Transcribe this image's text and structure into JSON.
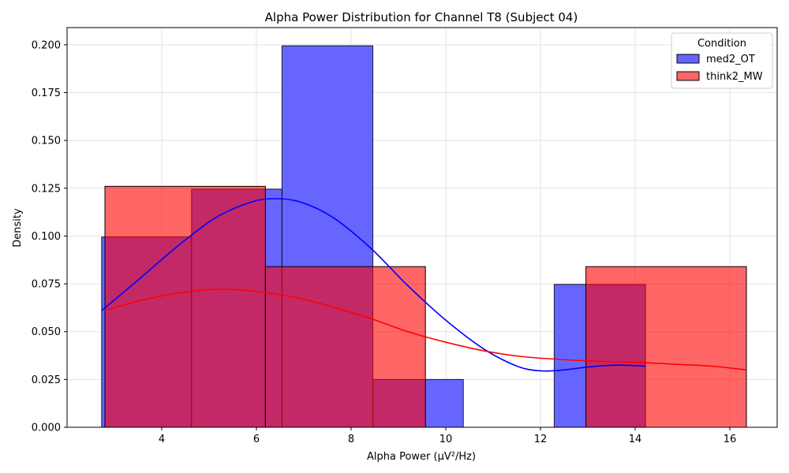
{
  "chart_data": {
    "type": "histogram",
    "title": "Alpha Power Distribution for Channel T8 (Subject 04)",
    "xlabel": "Alpha Power (µV²/Hz)",
    "ylabel": "Density",
    "xlim": [
      2.0,
      17.0
    ],
    "ylim": [
      0.0,
      0.209
    ],
    "x_ticks": [
      4,
      6,
      8,
      10,
      12,
      14,
      16
    ],
    "x_tick_labels": [
      "4",
      "6",
      "8",
      "10",
      "12",
      "14",
      "16"
    ],
    "y_ticks": [
      0.0,
      0.025,
      0.05,
      0.075,
      0.1,
      0.125,
      0.15,
      0.175,
      0.2
    ],
    "y_tick_labels": [
      "0.000",
      "0.025",
      "0.050",
      "0.075",
      "0.100",
      "0.125",
      "0.150",
      "0.175",
      "0.200"
    ],
    "grid": true,
    "legend": {
      "title": "Condition",
      "position": "top-right"
    },
    "series": [
      {
        "name": "med2_OT",
        "color": "#6666ff",
        "edge_color": "#000000",
        "kde_color": "#0000ff",
        "bins": [
          2.73,
          4.63,
          6.54,
          8.46,
          10.37,
          12.29,
          14.22
        ],
        "densities": [
          0.0995,
          0.1245,
          0.1995,
          0.025,
          0.0,
          0.0747
        ],
        "kde_x": [
          2.73,
          3.5,
          4.3,
          5.1,
          5.8,
          6.3,
          6.9,
          7.6,
          8.4,
          9.2,
          10.0,
          10.8,
          11.5,
          12.0,
          12.5,
          13.0,
          13.6,
          14.22
        ],
        "kde_y": [
          0.061,
          0.077,
          0.094,
          0.109,
          0.117,
          0.1195,
          0.118,
          0.11,
          0.094,
          0.074,
          0.056,
          0.041,
          0.032,
          0.0295,
          0.03,
          0.0315,
          0.0325,
          0.032
        ]
      },
      {
        "name": "think2_MW",
        "color": "#ff6666",
        "edge_color": "#000000",
        "kde_color": "#ff0000",
        "bins": [
          2.8,
          6.19,
          9.57,
          12.96,
          16.35
        ],
        "densities": [
          0.126,
          0.084,
          0.0,
          0.084
        ],
        "kde_x": [
          2.8,
          3.5,
          4.3,
          5.2,
          6.0,
          6.8,
          7.6,
          8.4,
          9.2,
          10.0,
          10.8,
          11.6,
          12.4,
          13.2,
          14.0,
          14.8,
          15.6,
          16.35
        ],
        "kde_y": [
          0.061,
          0.066,
          0.07,
          0.0722,
          0.071,
          0.068,
          0.063,
          0.057,
          0.05,
          0.0445,
          0.04,
          0.037,
          0.0355,
          0.0345,
          0.034,
          0.033,
          0.032,
          0.03
        ]
      }
    ]
  }
}
